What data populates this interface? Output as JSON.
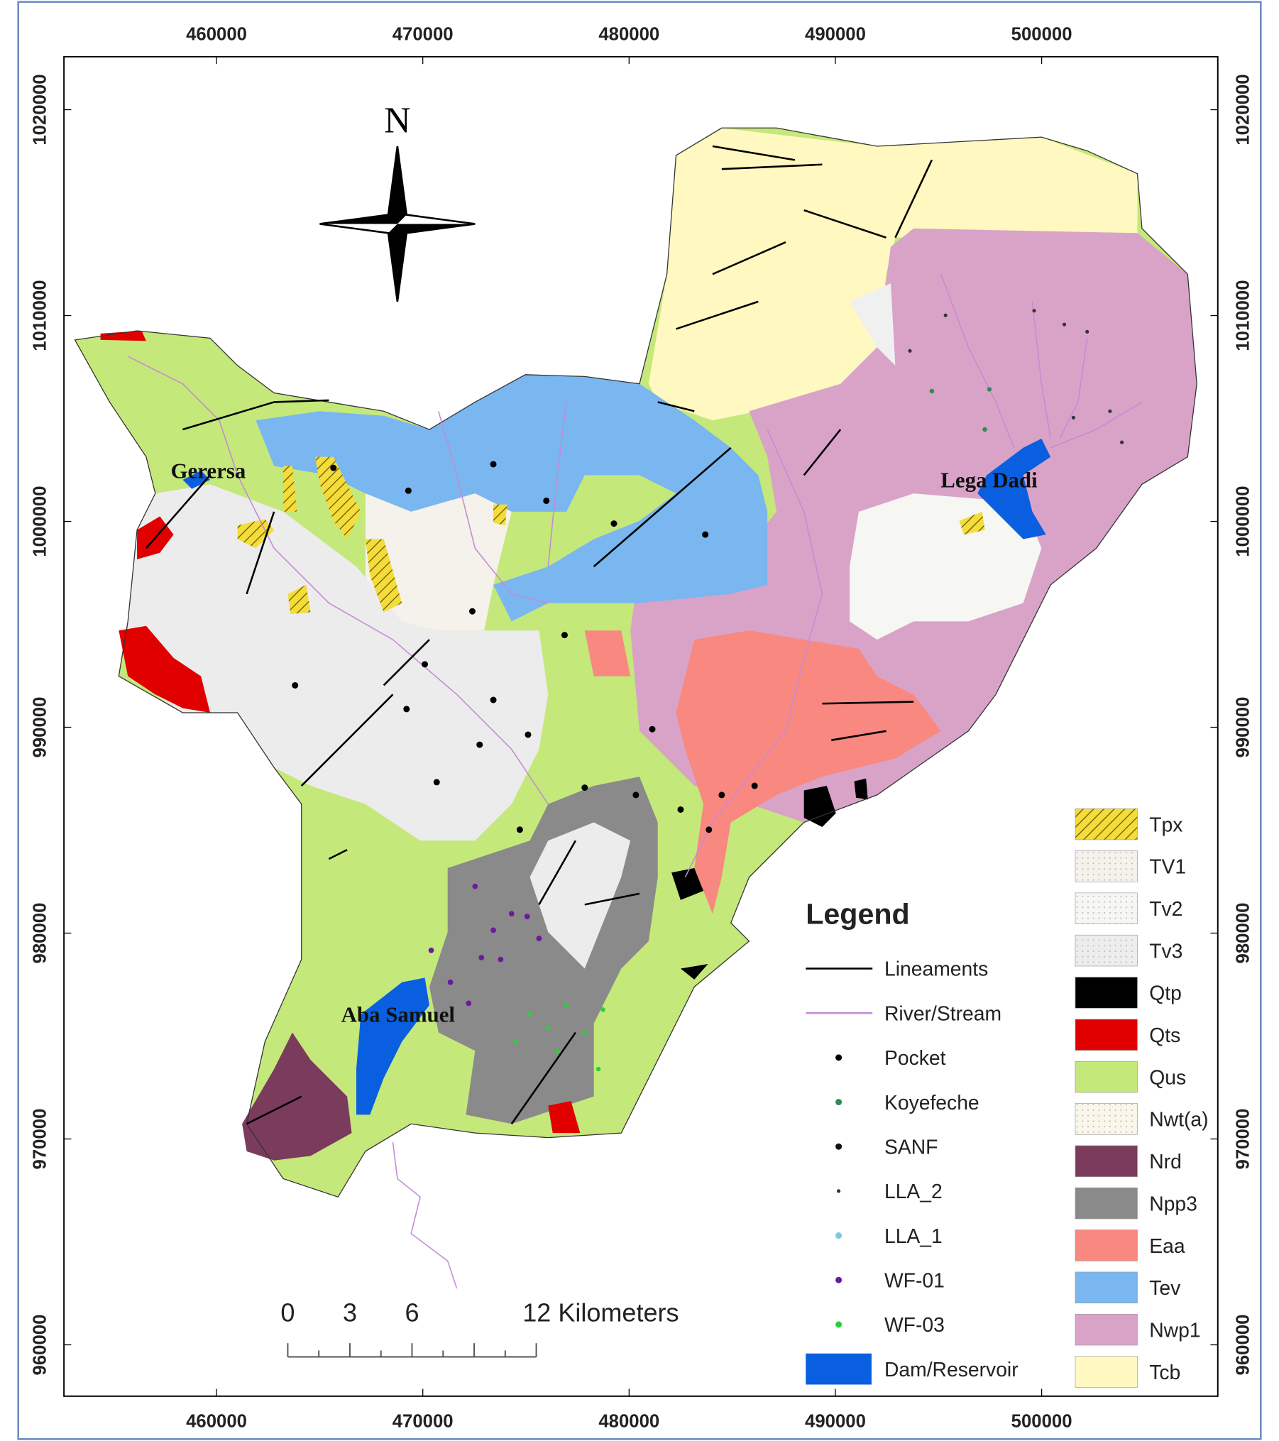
{
  "map": {
    "eastings": [
      460000,
      470000,
      480000,
      490000,
      500000
    ],
    "northings": [
      1020000,
      1010000,
      1000000,
      990000,
      980000,
      970000,
      960000
    ],
    "north_label": "N",
    "places": [
      {
        "label": "Gerersa",
        "e": 459600,
        "n": 1002100
      },
      {
        "label": "Lega Dadi",
        "e": 497450,
        "n": 1001650
      },
      {
        "label": "Aba Samuel",
        "e": 468800,
        "n": 975690
      }
    ],
    "scale_bar": {
      "labels": [
        "0",
        "3",
        "6",
        "12 Kilometers"
      ]
    },
    "legend": {
      "title": "Legend",
      "items": [
        {
          "label": "Lineaments",
          "symbol": "line",
          "color": "#000000"
        },
        {
          "label": "River/Stream",
          "symbol": "line",
          "color": "#c58ad6"
        },
        {
          "label": "Pocket",
          "symbol": "point",
          "color": "#000000"
        },
        {
          "label": "Koyefeche",
          "symbol": "point",
          "color": "#2e8b57"
        },
        {
          "label": "SANF",
          "symbol": "point",
          "color": "#111111"
        },
        {
          "label": "LLA_2",
          "symbol": "point",
          "color": "#333333"
        },
        {
          "label": "LLA_1",
          "symbol": "point",
          "color": "#7ec8e3"
        },
        {
          "label": "WF-01",
          "symbol": "point",
          "color": "#6a1b9a"
        },
        {
          "label": "WF-03",
          "symbol": "point",
          "color": "#2ecc40"
        },
        {
          "label": "Dam/Reservoir",
          "symbol": "area",
          "color": "#0a5fe0"
        }
      ],
      "units": [
        {
          "label": "Tpx",
          "color": "#f4dc3a",
          "hatched": true
        },
        {
          "label": "TV1",
          "color": "#f4f2ea",
          "dotted": true
        },
        {
          "label": "Tv2",
          "color": "#f6f6f2",
          "dotted": true
        },
        {
          "label": "Tv3",
          "color": "#ededed",
          "dotted": true
        },
        {
          "label": "Qtp",
          "color": "#000000"
        },
        {
          "label": "Qts",
          "color": "#e00000"
        },
        {
          "label": "Qus",
          "color": "#c5e87a"
        },
        {
          "label": "Nwt(a)",
          "color": "#fbf6ea",
          "dotted": true
        },
        {
          "label": "Nrd",
          "color": "#7b3b5c"
        },
        {
          "label": "Npp3",
          "color": "#8a8a8a"
        },
        {
          "label": "Eaa",
          "color": "#f88880"
        },
        {
          "label": "Tev",
          "color": "#7ab6ef"
        },
        {
          "label": "Nwp1",
          "color": "#d9a3c8"
        },
        {
          "label": "Tcb",
          "color": "#fff8c0"
        }
      ]
    }
  }
}
